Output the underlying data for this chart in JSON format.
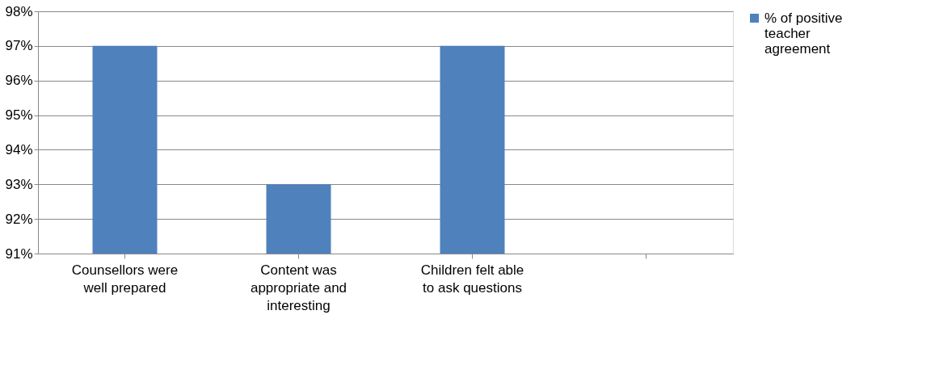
{
  "chart_data": {
    "type": "bar",
    "categories": [
      "Counsellors were well prepared",
      "Content was appropriate and interesting",
      "Children felt able to ask questions",
      null
    ],
    "series": [
      {
        "name": "% of positive teacher agreement",
        "color": "#4f81bd",
        "values": [
          97,
          93,
          97,
          null
        ]
      }
    ],
    "ylim": [
      91,
      98
    ],
    "yticks": [
      {
        "value": 91,
        "label": "91%"
      },
      {
        "value": 92,
        "label": "92%"
      },
      {
        "value": 93,
        "label": "93%"
      },
      {
        "value": 94,
        "label": "94%"
      },
      {
        "value": 95,
        "label": "95%"
      },
      {
        "value": 96,
        "label": "96%"
      },
      {
        "value": 97,
        "label": "97%"
      },
      {
        "value": 98,
        "label": "98%"
      }
    ],
    "grid": "y",
    "legend": "right"
  }
}
